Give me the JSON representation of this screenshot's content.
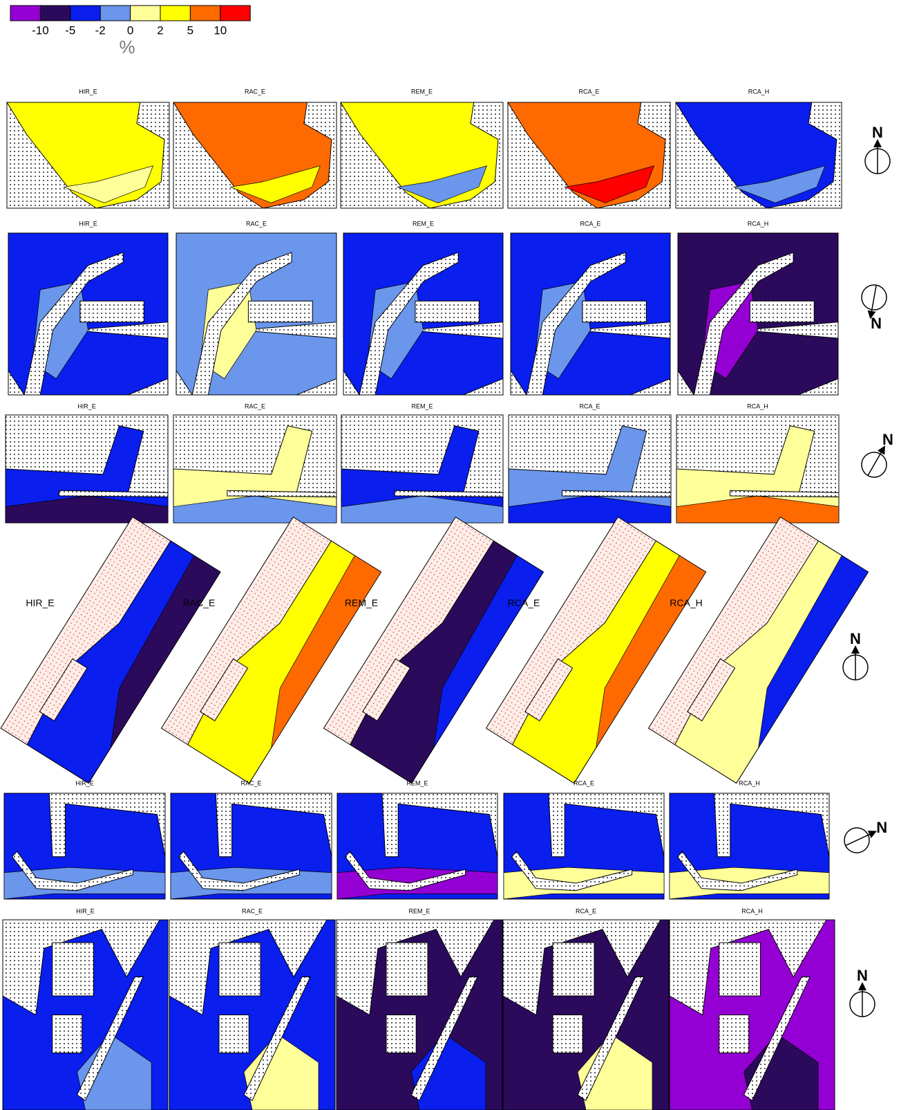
{
  "legend": {
    "labels": [
      "-10",
      "-5",
      "-2",
      "0",
      "2",
      "5",
      "10"
    ],
    "unit": "%",
    "colors": [
      "#9400d3",
      "#2b0a5c",
      "#0a1eee",
      "#6a96ec",
      "#ffff99",
      "#ffff00",
      "#ff6a00",
      "#ff0000"
    ]
  },
  "rows": [
    {
      "panels": [
        "HIR_E",
        "RAC_E",
        "REM_E",
        "RCA_E",
        "RCA_H"
      ],
      "north": "N"
    },
    {
      "panels": [
        "HIR_E",
        "RAC_E",
        "REM_E",
        "RCA_E",
        "RCA_H"
      ],
      "north": "N"
    },
    {
      "panels": [
        "HIR_E",
        "RAC_E",
        "REM_E",
        "RCA_E",
        "RCA_H"
      ],
      "north": "N"
    },
    {
      "panels": [
        "HIR_E",
        "RAC_E",
        "REM_E",
        "RCA_E",
        "RCA_H"
      ],
      "north": "N"
    },
    {
      "panels": [
        "HIR_E",
        "RAC_E",
        "REM_E",
        "RCA_E",
        "RCA_H"
      ],
      "north": "N"
    },
    {
      "panels": [
        "HIR_E",
        "RAC_E",
        "REM_E",
        "RCA_E",
        "RCA_H"
      ],
      "north": "N"
    }
  ]
}
